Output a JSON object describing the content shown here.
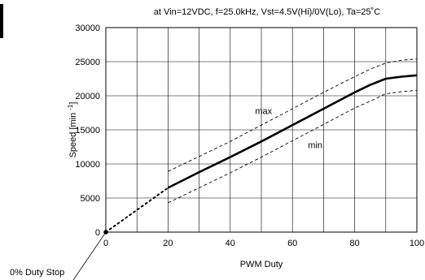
{
  "chart_data": {
    "type": "line",
    "title": "at Vin=12VDC, f=25.0kHz, Vst=4.5V(Hi)/0V(Lo), Ta=25˚C",
    "xlabel": "PWM Duty",
    "ylabel": "Speed [min",
    "ylabel_sup": "-1",
    "ylabel_close": "]",
    "xlim": [
      0,
      100
    ],
    "ylim": [
      0,
      30000
    ],
    "x_ticks": [
      0,
      20,
      40,
      60,
      80,
      100
    ],
    "y_ticks": [
      0,
      5000,
      10000,
      15000,
      20000,
      25000,
      30000
    ],
    "grid": true,
    "series": [
      {
        "name": "",
        "style": "solid-bold",
        "x": [
          20,
          30,
          40,
          50,
          60,
          70,
          80,
          85,
          90,
          95,
          100
        ],
        "y": [
          6500,
          8800,
          11000,
          13300,
          15700,
          18100,
          20500,
          21600,
          22500,
          22800,
          23000
        ]
      },
      {
        "name": "max",
        "style": "dashed",
        "x": [
          20,
          30,
          40,
          50,
          60,
          70,
          80,
          85,
          90,
          95,
          100
        ],
        "y": [
          8900,
          11100,
          13300,
          15700,
          18100,
          20500,
          22800,
          23900,
          24800,
          25200,
          25400
        ]
      },
      {
        "name": "min",
        "style": "dashed",
        "x": [
          20,
          30,
          40,
          50,
          60,
          70,
          80,
          85,
          90,
          95,
          100
        ],
        "y": [
          4300,
          6500,
          8700,
          11000,
          13400,
          15800,
          18200,
          19200,
          20300,
          20600,
          20800
        ]
      },
      {
        "name": "",
        "style": "dotted",
        "x": [
          0,
          20
        ],
        "y": [
          0,
          6500
        ]
      }
    ],
    "annotations": [
      {
        "text": "max",
        "x": 48,
        "y": 17300
      },
      {
        "text": "min",
        "x": 65,
        "y": 12300
      },
      {
        "text": "0% Duty Stop",
        "pointer_x": 0,
        "pointer_y": 0
      }
    ]
  }
}
